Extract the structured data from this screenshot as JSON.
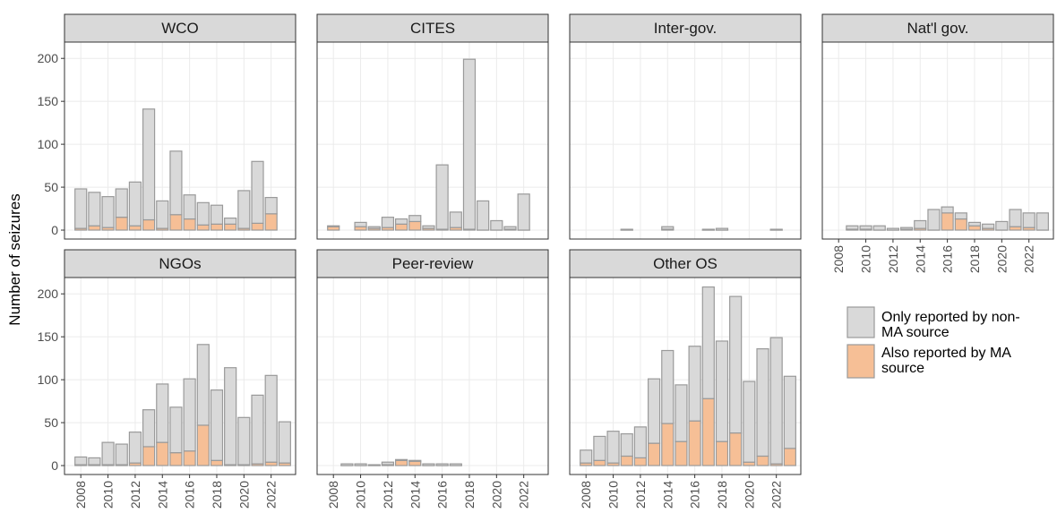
{
  "chart_data": {
    "type": "bar",
    "stacked": true,
    "ylabel": "Number of seizures",
    "x": [
      2008,
      2009,
      2010,
      2011,
      2012,
      2013,
      2014,
      2015,
      2016,
      2017,
      2018,
      2019,
      2020,
      2021,
      2022,
      2023
    ],
    "xlim": [
      2006.8,
      2023.8
    ],
    "xticks": [
      2008,
      2010,
      2012,
      2014,
      2016,
      2018,
      2020,
      2022
    ],
    "ylim": [
      -10.4,
      219
    ],
    "yticks": [
      0,
      50,
      100,
      150,
      200
    ],
    "grid": true,
    "legend_position": "right",
    "series": [
      {
        "name": "Also reported by MA source",
        "color": "#f6bf96"
      },
      {
        "name": "Only reported by non-MA source",
        "color": "#d9d9d9"
      }
    ],
    "panels": [
      {
        "title": "WCO",
        "series": [
          {
            "values": [
              2,
              5,
              3,
              15,
              5,
              12,
              2,
              18,
              13,
              6,
              7,
              7,
              2,
              8,
              19,
              null
            ]
          },
          {
            "values": [
              46,
              39,
              36,
              33,
              51,
              129,
              32,
              74,
              28,
              26,
              22,
              7,
              44,
              72,
              19,
              null
            ]
          }
        ]
      },
      {
        "title": "CITES",
        "series": [
          {
            "values": [
              4,
              null,
              4,
              2,
              3,
              7,
              10,
              2,
              1,
              3,
              1,
              0,
              0,
              1,
              0,
              null
            ]
          },
          {
            "values": [
              1,
              null,
              5,
              2,
              12,
              6,
              7,
              3,
              75,
              18,
              198,
              34,
              11,
              3,
              42,
              null
            ]
          }
        ]
      },
      {
        "title": "Inter-gov.",
        "series": [
          {
            "values": [
              null,
              null,
              null,
              0,
              null,
              null,
              1,
              null,
              null,
              0,
              0,
              null,
              null,
              null,
              0,
              null
            ]
          },
          {
            "values": [
              null,
              null,
              null,
              1,
              null,
              null,
              3,
              null,
              null,
              1,
              2,
              null,
              null,
              null,
              1,
              null
            ]
          }
        ]
      },
      {
        "title": "Nat'l gov.",
        "series": [
          {
            "values": [
              null,
              1,
              1,
              0,
              0,
              1,
              2,
              0,
              20,
              13,
              5,
              2,
              0,
              4,
              3,
              0
            ]
          },
          {
            "values": [
              null,
              4,
              4,
              5,
              2,
              2,
              9,
              24,
              7,
              7,
              4,
              5,
              10,
              20,
              17,
              20
            ]
          }
        ]
      },
      {
        "title": "NGOs",
        "series": [
          {
            "values": [
              1,
              1,
              1,
              1,
              3,
              22,
              27,
              15,
              17,
              47,
              6,
              1,
              1,
              2,
              4,
              3
            ]
          },
          {
            "values": [
              9,
              8,
              26,
              24,
              36,
              43,
              68,
              53,
              84,
              94,
              82,
              113,
              55,
              80,
              101,
              48
            ]
          }
        ]
      },
      {
        "title": "Peer-review",
        "series": [
          {
            "values": [
              null,
              0,
              0,
              0,
              1,
              6,
              5,
              0,
              0,
              0,
              null,
              null,
              null,
              null,
              null,
              null
            ]
          },
          {
            "values": [
              null,
              2,
              2,
              1,
              3,
              1,
              1,
              2,
              2,
              2,
              null,
              null,
              null,
              null,
              null,
              null
            ]
          }
        ]
      },
      {
        "title": "Other OS",
        "series": [
          {
            "values": [
              3,
              6,
              3,
              11,
              9,
              26,
              49,
              28,
              52,
              78,
              28,
              38,
              4,
              11,
              2,
              20
            ]
          },
          {
            "values": [
              15,
              28,
              37,
              26,
              36,
              75,
              85,
              66,
              87,
              130,
              117,
              159,
              94,
              125,
              147,
              84
            ]
          }
        ]
      }
    ]
  }
}
